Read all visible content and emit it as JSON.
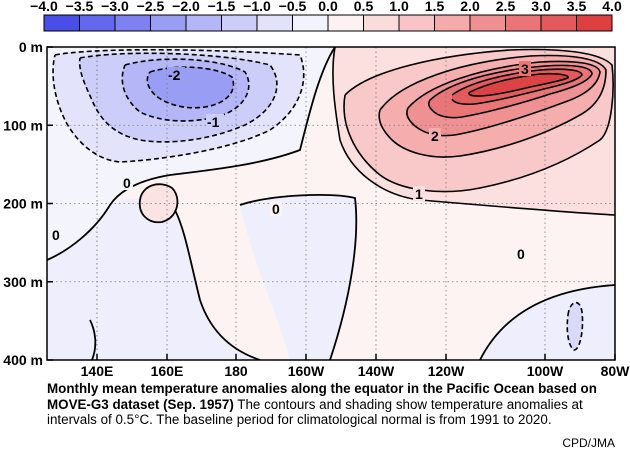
{
  "chart_data": {
    "type": "heatmap",
    "colorbar": {
      "ticks": [
        "-4.0",
        "-3.5",
        "-3.0",
        "-2.5",
        "-2.0",
        "-1.5",
        "-1.0",
        "-0.5",
        "0.0",
        "0.5",
        "1.0",
        "1.5",
        "2.0",
        "2.5",
        "3.0",
        "3.5",
        "4.0"
      ],
      "colors": [
        "#4a4ee8",
        "#6468ee",
        "#7e82f0",
        "#9a9df4",
        "#b4b6f7",
        "#ccceF9",
        "#e2e3fb",
        "#f3f3fd",
        "#fdf1f1",
        "#fbdcdc",
        "#f8c4c5",
        "#f5aaab",
        "#f08f90",
        "#ea7476",
        "#e45a5c",
        "#de4042"
      ]
    },
    "x_ticks": [
      "140E",
      "160E",
      "180",
      "160W",
      "140W",
      "120W",
      "100W",
      "80W"
    ],
    "y_ticks": [
      "0 m",
      "100 m",
      "200 m",
      "300 m",
      "400 m"
    ],
    "xlim": [
      "130E",
      "80W"
    ],
    "ylim": [
      0,
      400
    ],
    "contour_interval": 0.5,
    "contour_labels": [
      "-2",
      "-1",
      "0",
      "0",
      "0",
      "0",
      "1",
      "2",
      "3"
    ],
    "grid": true
  },
  "caption": {
    "bold": "Monthly mean temperature anomalies along the equator in the Pacific Ocean based on MOVE-G3 dataset (Sep. 1957)",
    "rest": " The contours and shading show temperature anomalies at intervals of 0.5°C.  The baseline period for climatological normal is from 1991 to 2020."
  },
  "credit": "CPD/JMA"
}
